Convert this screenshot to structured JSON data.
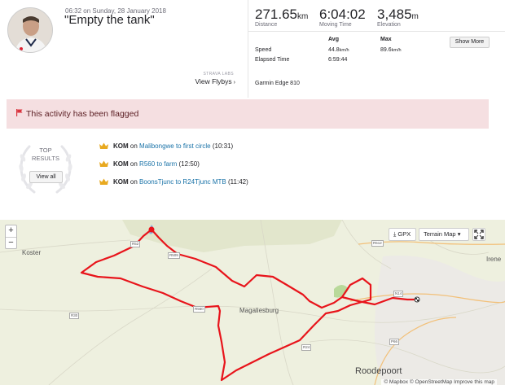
{
  "activity": {
    "datetime": "06:32 on Sunday, 28 January 2018",
    "title": "\"Empty the tank\"",
    "strava_labs": "STRAVA LABS",
    "view_flybys": "View Flybys"
  },
  "stats": {
    "distance_value": "271.65",
    "distance_unit": "km",
    "distance_label": "Distance",
    "moving_time_value": "6:04:02",
    "moving_time_label": "Moving Time",
    "elevation_value": "3,485",
    "elevation_unit": "m",
    "elevation_label": "Elevation"
  },
  "details": {
    "avg_header": "Avg",
    "max_header": "Max",
    "rows": [
      {
        "label": "Speed",
        "avg_value": "44.8",
        "avg_unit": "km/h",
        "max_value": "89.6",
        "max_unit": "km/h"
      },
      {
        "label": "Elapsed Time",
        "avg_value": "6:59:44",
        "avg_unit": "",
        "max_value": "",
        "max_unit": ""
      }
    ],
    "show_more": "Show More",
    "device": "Garmin Edge 810"
  },
  "flag_notice": "This activity has been flagged",
  "top_results": {
    "heading_line1": "TOP",
    "heading_line2": "RESULTS",
    "view_all": "View all",
    "achievements": [
      {
        "type": "KOM",
        "on": "on",
        "segment": "Malibongwe to first circle",
        "time": "(10:31)"
      },
      {
        "type": "KOM",
        "on": "on",
        "segment": "R560 to farm",
        "time": "(12:50)"
      },
      {
        "type": "KOM",
        "on": "on",
        "segment": "BoonsTjunc to R24Tjunc MTB",
        "time": "(11:42)"
      }
    ]
  },
  "map": {
    "zoom_in": "+",
    "zoom_out": "−",
    "gpx_label": "GPX",
    "map_type": "Terrain Map",
    "places": [
      "Koster",
      "Magaliesburg",
      "Roodepoort",
      "Irene"
    ],
    "roads": [
      "R52",
      "R509",
      "R512",
      "N14",
      "R24",
      "R30",
      "R560",
      "P66"
    ],
    "attribution": "© Mapbox © OpenStreetMap Improve this map",
    "route_color": "#e8141b"
  }
}
